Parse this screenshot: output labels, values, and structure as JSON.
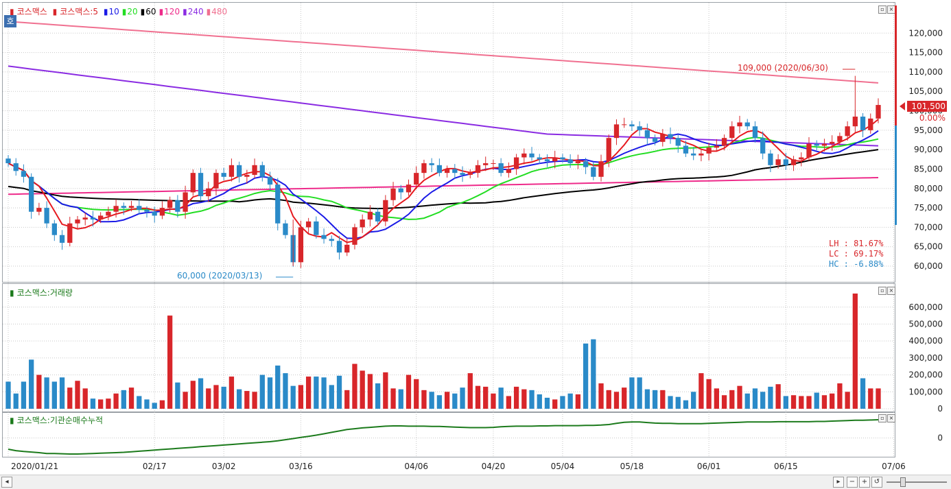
{
  "legend_main": {
    "name": "코스맥스",
    "ma_title": "코스맥스:5",
    "ma": [
      {
        "label": "10",
        "color": "#1a1ae6"
      },
      {
        "label": "20",
        "color": "#22dd22"
      },
      {
        "label": "60",
        "color": "#000000"
      },
      {
        "label": "120",
        "color": "#ee2a8a"
      },
      {
        "label": "240",
        "color": "#8a2be2"
      },
      {
        "label": "480",
        "color": "#f07090"
      }
    ],
    "ma5_color": "#e6191e",
    "price_color": "#d8262a"
  },
  "legend_volume": "코스맥스:거래량",
  "legend_inst": "코스맥스:기관순매수누적",
  "price_tag": "101,500",
  "change_tag": "0.00%",
  "annotations": {
    "high": "109,000 (2020/06/30)",
    "low": "60,000 (2020/03/13)",
    "lh": "LH : 81.67%",
    "lc": "LC : 69.17%",
    "hc": "HC : -6.88%"
  },
  "side_label": "호",
  "chart_data": {
    "type": "candlestick",
    "price_axis": {
      "ticks": [
        "120,000",
        "115,000",
        "110,000",
        "105,000",
        "100,000",
        "95,000",
        "90,000",
        "85,000",
        "80,000",
        "75,000",
        "70,000",
        "65,000",
        "60,000"
      ],
      "ylim": [
        57000,
        125000
      ]
    },
    "volume_axis": {
      "ticks": [
        "600,000",
        "500,000",
        "400,000",
        "300,000",
        "200,000",
        "100,000",
        "0"
      ],
      "ylim": [
        0,
        680000
      ]
    },
    "inst_axis": {
      "ticks": [
        "0"
      ]
    },
    "x_ticks": [
      {
        "label": "2020/01/21",
        "i": 0
      },
      {
        "label": "02/17",
        "i": 19
      },
      {
        "label": "03/02",
        "i": 28
      },
      {
        "label": "03/16",
        "i": 38
      },
      {
        "label": "04/06",
        "i": 53
      },
      {
        "label": "04/20",
        "i": 63
      },
      {
        "label": "05/04",
        "i": 72
      },
      {
        "label": "05/18",
        "i": 81
      },
      {
        "label": "06/01",
        "i": 91
      },
      {
        "label": "06/15",
        "i": 101
      },
      {
        "label": "07/06",
        "i": 115
      }
    ],
    "close": [
      86500,
      84500,
      83000,
      74000,
      75000,
      71000,
      68000,
      66000,
      71000,
      72000,
      72500,
      72000,
      73000,
      74000,
      75500,
      75000,
      75500,
      74500,
      74000,
      73000,
      75000,
      77000,
      74000,
      79000,
      84000,
      78000,
      80000,
      84000,
      83000,
      86000,
      83000,
      83500,
      86000,
      83000,
      81000,
      71000,
      68000,
      61000,
      70000,
      71500,
      68000,
      67000,
      66500,
      63500,
      65500,
      70000,
      72000,
      74000,
      71500,
      77000,
      80000,
      79000,
      81000,
      84000,
      86500,
      86000,
      84000,
      85000,
      84000,
      83500,
      84000,
      86000,
      86500,
      86500,
      84000,
      85000,
      88000,
      89000,
      88000,
      87500,
      87000,
      88000,
      87500,
      86500,
      87000,
      85500,
      83000,
      87000,
      93000,
      96500,
      96500,
      96000,
      95000,
      93000,
      92000,
      94000,
      93000,
      91000,
      89000,
      88500,
      89000,
      90500,
      91000,
      93000,
      96000,
      97000,
      96000,
      93000,
      89000,
      86000,
      87500,
      86000,
      87500,
      88000,
      91500,
      91000,
      91500,
      92000,
      93500,
      96000,
      98500,
      95000,
      98000,
      101500
    ],
    "volume": [
      160000,
      90000,
      160000,
      290000,
      200000,
      185000,
      160000,
      185000,
      125000,
      165000,
      120000,
      60000,
      55000,
      60000,
      90000,
      110000,
      125000,
      75000,
      55000,
      35000,
      50000,
      550000,
      155000,
      100000,
      165000,
      180000,
      120000,
      140000,
      130000,
      190000,
      115000,
      105000,
      100000,
      200000,
      185000,
      255000,
      210000,
      135000,
      140000,
      190000,
      190000,
      185000,
      140000,
      195000,
      110000,
      265000,
      225000,
      205000,
      150000,
      215000,
      120000,
      115000,
      200000,
      175000,
      110000,
      100000,
      80000,
      100000,
      90000,
      125000,
      210000,
      135000,
      130000,
      90000,
      125000,
      75000,
      130000,
      115000,
      110000,
      85000,
      65000,
      55000,
      75000,
      90000,
      85000,
      385000,
      410000,
      150000,
      110000,
      100000,
      125000,
      185000,
      185000,
      115000,
      110000,
      110000,
      75000,
      70000,
      50000,
      100000,
      210000,
      175000,
      120000,
      80000,
      110000,
      135000,
      90000,
      120000,
      100000,
      130000,
      145000,
      75000,
      80000,
      75000,
      75000,
      95000,
      80000,
      90000,
      150000,
      100000,
      680000,
      180000,
      120000,
      120000
    ],
    "inst": [
      -40,
      -45,
      -48,
      -50,
      -52,
      -55,
      -55,
      -56,
      -57,
      -57,
      -56,
      -55,
      -54,
      -53,
      -52,
      -51,
      -49,
      -47,
      -45,
      -43,
      -41,
      -39,
      -37,
      -35,
      -33,
      -31,
      -29,
      -27,
      -25,
      -23,
      -21,
      -19,
      -17,
      -15,
      -13,
      -10,
      -6,
      -2,
      2,
      6,
      10,
      15,
      20,
      25,
      30,
      33,
      36,
      38,
      40,
      42,
      43,
      43,
      42,
      42,
      42,
      41,
      41,
      40,
      39,
      38,
      37,
      37,
      37,
      38,
      40,
      41,
      42,
      42,
      42,
      43,
      43,
      44,
      44,
      44,
      44,
      45,
      45,
      46,
      48,
      52,
      56,
      57,
      57,
      55,
      53,
      52,
      52,
      51,
      51,
      51,
      51,
      52,
      53,
      54,
      55,
      56,
      57,
      57,
      57,
      57,
      58,
      58,
      58,
      58,
      58,
      59,
      59,
      60,
      61,
      62,
      63,
      63,
      64,
      65
    ]
  }
}
